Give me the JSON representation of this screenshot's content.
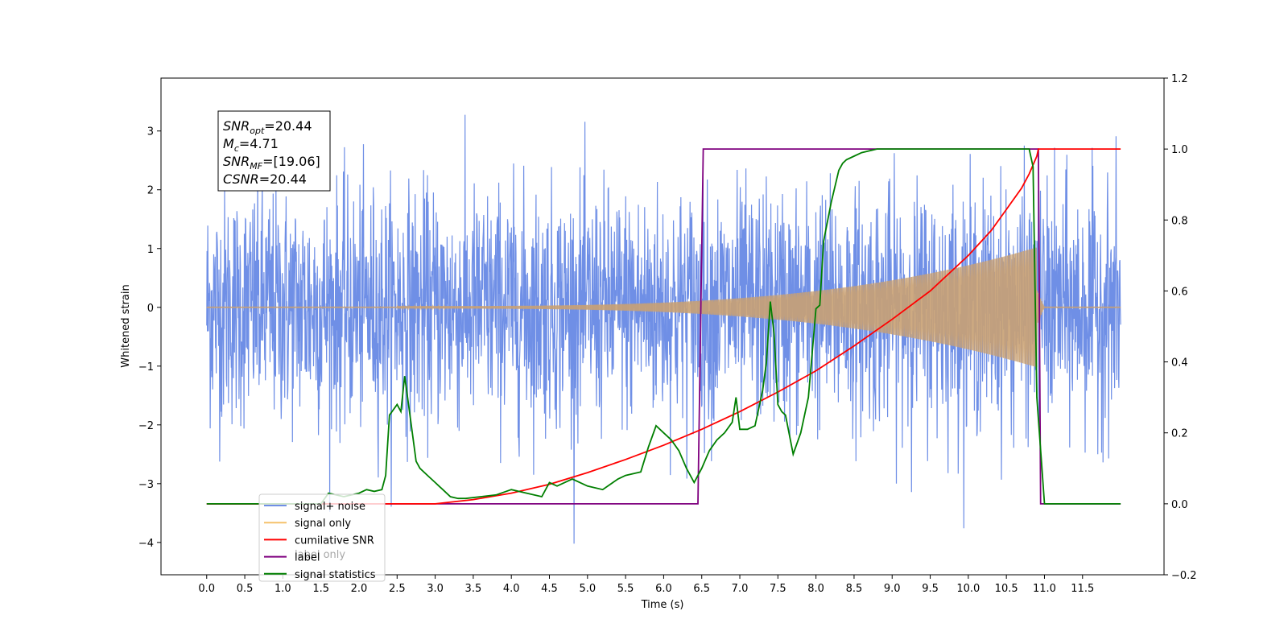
{
  "chart_data": {
    "type": "line",
    "xlabel": "Time (s)",
    "ylabel": "Whitened strain",
    "xlim": [
      -0.6,
      12.57
    ],
    "ylim": [
      -4.55,
      3.9
    ],
    "y2lim": [
      -0.2,
      1.2
    ],
    "xticks": [
      "0.0",
      "0.5",
      "1.0",
      "1.5",
      "2.0",
      "2.5",
      "3.0",
      "3.5",
      "4.0",
      "4.5",
      "5.0",
      "5.5",
      "6.0",
      "6.5",
      "7.0",
      "7.5",
      "8.0",
      "8.5",
      "9.0",
      "9.5",
      "10.0",
      "10.5",
      "11.0",
      "11.5"
    ],
    "yticks": [
      "3",
      "2",
      "1",
      "0",
      "−1",
      "−2",
      "−3",
      "−4"
    ],
    "y2ticks": [
      "1.2",
      "1.0",
      "0.8",
      "0.6",
      "0.4",
      "0.2",
      "0.0",
      "−0.2"
    ],
    "grid": false,
    "legend_position": "lower-left",
    "annotation": {
      "lines": [
        {
          "label": "SNR",
          "sub": "opt",
          "value": "=20.44"
        },
        {
          "label": "M",
          "sub": "c",
          "value": "=4.71"
        },
        {
          "label": "SNR",
          "sub": "MF",
          "value": "=[19.06]"
        },
        {
          "label": "CSNR",
          "sub": "",
          "value": "=20.44"
        }
      ]
    },
    "series": [
      {
        "name": "signal+ noise",
        "axis": "left",
        "color": "#6f8fe6",
        "noise_sigma": 1.0,
        "x_range": [
          0.0,
          12.0
        ]
      },
      {
        "name": "signal only",
        "axis": "left",
        "color": "#f5b041",
        "chirp_start": 2.5,
        "chirp_end": 10.9,
        "peak_amplitude": 1.0
      },
      {
        "name": "cumilative SNR",
        "axis": "right",
        "x": [
          0.0,
          3.0,
          3.5,
          4.0,
          4.5,
          5.0,
          5.5,
          6.0,
          6.5,
          7.0,
          7.5,
          8.0,
          8.5,
          9.0,
          9.5,
          10.0,
          10.3,
          10.5,
          10.7,
          10.8,
          10.9,
          10.92,
          12.0
        ],
        "y": [
          0.0,
          0.0,
          0.012,
          0.03,
          0.055,
          0.088,
          0.125,
          0.165,
          0.21,
          0.26,
          0.315,
          0.375,
          0.445,
          0.52,
          0.6,
          0.7,
          0.77,
          0.83,
          0.89,
          0.93,
          0.98,
          1.0,
          1.0
        ]
      },
      {
        "name": "label",
        "axis": "right",
        "x": [
          0.0,
          6.45,
          6.52,
          10.92,
          10.95,
          12.0
        ],
        "y": [
          0.0,
          0.0,
          1.0,
          1.0,
          0.0,
          0.0
        ]
      },
      {
        "name": "label only",
        "hidden_behind_legend": true
      },
      {
        "name": "signal statistics",
        "axis": "right",
        "x": [
          0.0,
          1.5,
          1.6,
          1.8,
          2.0,
          2.1,
          2.2,
          2.3,
          2.35,
          2.4,
          2.5,
          2.55,
          2.6,
          2.65,
          2.7,
          2.75,
          2.8,
          2.9,
          3.0,
          3.05,
          3.1,
          3.2,
          3.3,
          3.4,
          3.6,
          3.8,
          4.0,
          4.2,
          4.4,
          4.5,
          4.6,
          4.7,
          4.8,
          5.0,
          5.2,
          5.4,
          5.5,
          5.7,
          5.8,
          5.9,
          6.0,
          6.1,
          6.2,
          6.3,
          6.4,
          6.45,
          6.5,
          6.6,
          6.7,
          6.8,
          6.9,
          6.95,
          7.0,
          7.1,
          7.2,
          7.3,
          7.35,
          7.4,
          7.45,
          7.5,
          7.55,
          7.6,
          7.7,
          7.8,
          7.9,
          8.0,
          8.05,
          8.1,
          8.2,
          8.3,
          8.35,
          8.4,
          8.5,
          8.6,
          8.8,
          9.0,
          9.5,
          10.0,
          10.5,
          10.8,
          10.85,
          10.9,
          11.0,
          12.0
        ],
        "y": [
          0.0,
          0.0,
          0.03,
          0.02,
          0.03,
          0.04,
          0.035,
          0.04,
          0.08,
          0.25,
          0.28,
          0.26,
          0.36,
          0.28,
          0.2,
          0.12,
          0.1,
          0.08,
          0.06,
          0.05,
          0.04,
          0.02,
          0.015,
          0.015,
          0.02,
          0.025,
          0.04,
          0.03,
          0.02,
          0.06,
          0.05,
          0.06,
          0.07,
          0.05,
          0.04,
          0.07,
          0.08,
          0.09,
          0.16,
          0.22,
          0.2,
          0.18,
          0.15,
          0.1,
          0.06,
          0.08,
          0.1,
          0.15,
          0.18,
          0.2,
          0.23,
          0.3,
          0.21,
          0.21,
          0.22,
          0.32,
          0.4,
          0.57,
          0.48,
          0.28,
          0.26,
          0.25,
          0.14,
          0.2,
          0.3,
          0.55,
          0.56,
          0.74,
          0.85,
          0.94,
          0.96,
          0.97,
          0.98,
          0.99,
          1.0,
          1.0,
          1.0,
          1.0,
          1.0,
          1.0,
          0.95,
          0.3,
          0.0,
          0.0
        ]
      }
    ]
  },
  "legend": {
    "items": [
      {
        "label": "signal+ noise",
        "color": "#6f8fe6"
      },
      {
        "label": "signal only",
        "color": "#f5c26b"
      },
      {
        "label": "cumilative SNR",
        "color": "#ff0000"
      },
      {
        "label": "label",
        "color": "#7f007f"
      },
      {
        "label": "signal statistics",
        "color": "#007f00"
      }
    ],
    "hidden_label": "label only"
  }
}
